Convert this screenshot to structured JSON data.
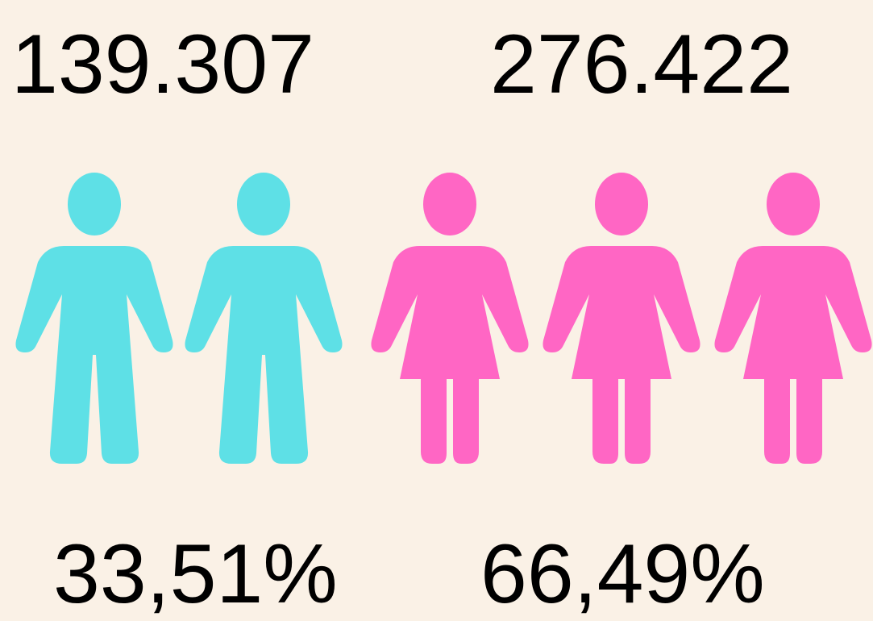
{
  "groups": [
    {
      "count": "139.307",
      "percent": "33,51%"
    },
    {
      "count": "276.422",
      "percent": "66,49%"
    }
  ]
}
